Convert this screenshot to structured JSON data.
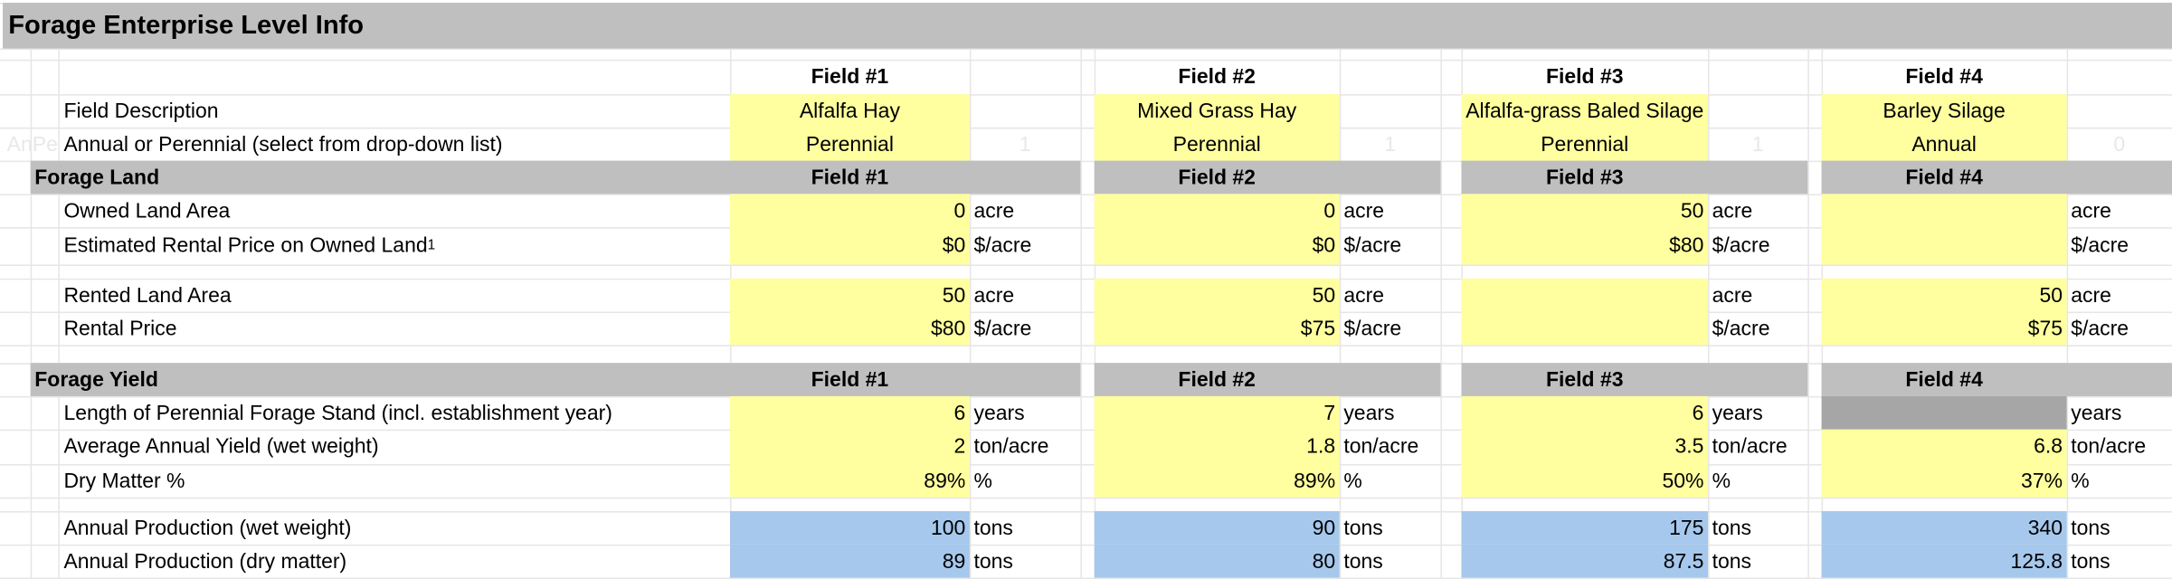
{
  "title": "Forage Enterprise Level Info",
  "header": [
    "Field #1",
    "Field #2",
    "Field #3",
    "Field #4"
  ],
  "hidden_label": "AnPe",
  "info_rows": [
    {
      "label": "Field Description",
      "values": [
        "Alfalfa Hay",
        "Mixed Grass Hay",
        "Alfalfa-grass Baled Silage",
        "Barley Silage"
      ]
    },
    {
      "label": "Annual or Perennial (select from drop-down list)",
      "values": [
        "Perennial",
        "Perennial",
        "Perennial",
        "Annual"
      ],
      "hidden_values": [
        "1",
        "1",
        "1",
        "0"
      ]
    }
  ],
  "sections": [
    {
      "title": "Forage Land",
      "fields": [
        "Field #1",
        "Field #2",
        "Field #3",
        "Field #4"
      ],
      "rows": [
        {
          "label": "Owned Land Area",
          "values": [
            "0",
            "0",
            "50",
            null
          ],
          "unit": "acre"
        },
        {
          "label": "Estimated Rental Price on Owned Land",
          "footnote": "1",
          "values": [
            "$0",
            "$0",
            "$80",
            null
          ],
          "unit": "$/acre"
        },
        {
          "label": "Rented Land Area",
          "values": [
            "50",
            "50",
            null,
            "50"
          ],
          "unit": "acre"
        },
        {
          "label": "Rental Price",
          "values": [
            "$80",
            "$75",
            null,
            "$75"
          ],
          "unit": "$/acre"
        }
      ]
    },
    {
      "title": "Forage Yield",
      "fields": [
        "Field #1",
        "Field #2",
        "Field #3",
        "Field #4"
      ],
      "rows": [
        {
          "label": "Length of Perennial Forage Stand (incl. establishment year)",
          "values": [
            "6",
            "7",
            "6",
            null
          ],
          "unit": "years"
        },
        {
          "label": "Average Annual Yield (wet weight)",
          "values": [
            "2",
            "1.8",
            "3.5",
            "6.8"
          ],
          "unit": "ton/acre"
        },
        {
          "label": "Dry Matter %",
          "values": [
            "89%",
            "89%",
            "50%",
            "37%"
          ],
          "unit": "%"
        },
        {
          "label": "Annual Production (wet weight)",
          "values": [
            "100",
            "90",
            "175",
            "340"
          ],
          "unit": "tons"
        },
        {
          "label": "Annual Production (dry matter)",
          "values": [
            "89",
            "80",
            "87.5",
            "125.8"
          ],
          "unit": "tons"
        }
      ]
    }
  ]
}
